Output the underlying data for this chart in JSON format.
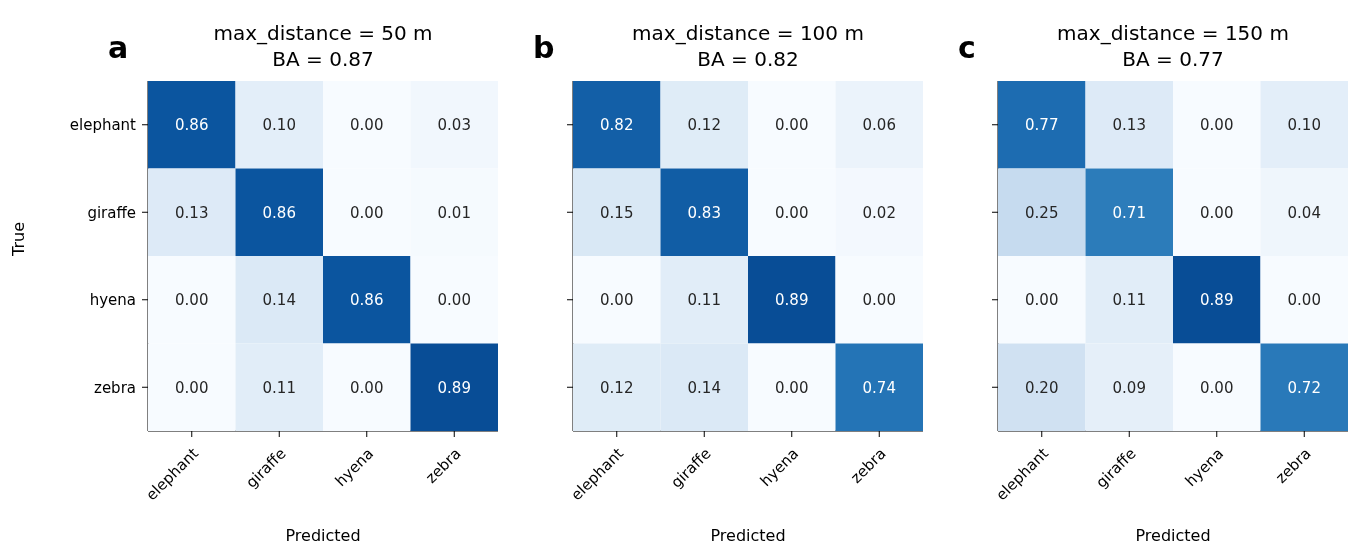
{
  "chart_data": [
    {
      "type": "heatmap",
      "title": "max_distance = 50 m",
      "subtitle": "BA = 0.87",
      "annotations": [
        "a"
      ],
      "xlabel": "Predicted",
      "ylabel": "True",
      "categories": [
        "elephant",
        "giraffe",
        "hyena",
        "zebra"
      ],
      "y_categories": [
        "elephant",
        "giraffe",
        "hyena",
        "zebra"
      ],
      "cells": [
        [
          0.86,
          0.1,
          0.0,
          0.03
        ],
        [
          0.13,
          0.86,
          0.0,
          0.01
        ],
        [
          0.0,
          0.14,
          0.86,
          0.0
        ],
        [
          0.0,
          0.11,
          0.0,
          0.89
        ]
      ],
      "cell_labels": [
        [
          "0.86",
          "0.10",
          "0.00",
          "0.03"
        ],
        [
          "0.13",
          "0.86",
          "0.00",
          "0.01"
        ],
        [
          "0.00",
          "0.14",
          "0.86",
          "0.00"
        ],
        [
          "0.00",
          "0.11",
          "0.00",
          "0.89"
        ]
      ]
    },
    {
      "type": "heatmap",
      "title": "max_distance = 100 m",
      "subtitle": "BA = 0.82",
      "annotations": [
        "b"
      ],
      "xlabel": "Predicted",
      "categories": [
        "elephant",
        "giraffe",
        "hyena",
        "zebra"
      ],
      "y_categories": [
        null,
        null,
        null,
        null
      ],
      "cells": [
        [
          0.82,
          0.12,
          0.0,
          0.06
        ],
        [
          0.15,
          0.83,
          0.0,
          0.02
        ],
        [
          0.0,
          0.11,
          0.89,
          0.0
        ],
        [
          0.12,
          0.14,
          0.0,
          0.74
        ]
      ],
      "cell_labels": [
        [
          "0.82",
          "0.12",
          "0.00",
          "0.06"
        ],
        [
          "0.15",
          "0.83",
          "0.00",
          "0.02"
        ],
        [
          "0.00",
          "0.11",
          "0.89",
          "0.00"
        ],
        [
          "0.12",
          "0.14",
          "0.00",
          "0.74"
        ]
      ],
      "tick_labels": "x"
    },
    {
      "type": "heatmap",
      "title": "max_distance = 150 m",
      "subtitle": "BA = 0.77",
      "annotations": [
        "c"
      ],
      "xlabel": "Predicted",
      "categories": [
        "elephant",
        "giraffe",
        "hyena",
        "zebra"
      ],
      "y_categories": [
        null,
        null,
        null,
        null
      ],
      "cells": [
        [
          0.77,
          0.13,
          0.0,
          0.1
        ],
        [
          0.25,
          0.71,
          0.0,
          0.04
        ],
        [
          0.0,
          0.11,
          0.89,
          0.0
        ],
        [
          0.2,
          0.09,
          0.0,
          0.72
        ]
      ],
      "cell_labels": [
        [
          "0.77",
          "0.13",
          "0.00",
          "0.10"
        ],
        [
          "0.25",
          "0.71",
          "0.00",
          "0.04"
        ],
        [
          "0.00",
          "0.11",
          "0.89",
          "0.00"
        ],
        [
          "0.20",
          "0.09",
          "0.00",
          "0.72"
        ]
      ],
      "tick_labels": "x"
    }
  ]
}
